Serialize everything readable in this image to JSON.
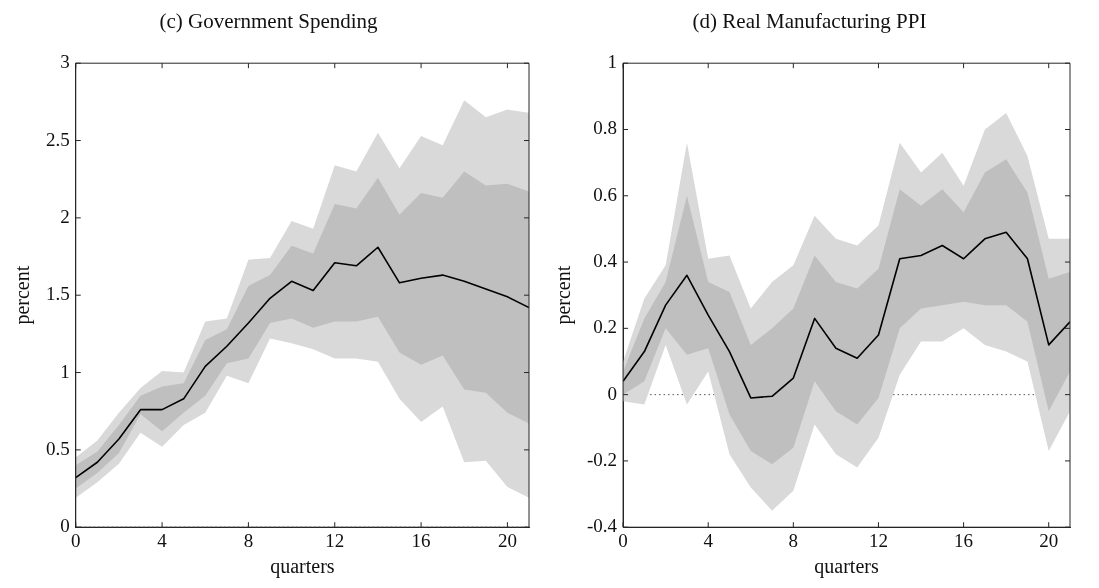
{
  "chart_data": [
    {
      "type": "line",
      "title": "(c) Government Spending",
      "xlabel": "quarters",
      "ylabel": "percent",
      "x": [
        0,
        1,
        2,
        3,
        4,
        5,
        6,
        7,
        8,
        9,
        10,
        11,
        12,
        13,
        14,
        15,
        16,
        17,
        18,
        19,
        20,
        21
      ],
      "xlim": [
        0,
        21
      ],
      "xticks": [
        0,
        4,
        8,
        12,
        16,
        20
      ],
      "ylim": [
        0,
        3
      ],
      "yticks": [
        0,
        0.5,
        1,
        1.5,
        2,
        2.5,
        3
      ],
      "grid": false,
      "legend": false,
      "marker": "none",
      "series": [
        {
          "color": "#d9d9d9",
          "values": [
            null,
            null,
            null,
            null,
            null,
            null,
            null,
            null,
            null,
            null,
            null,
            null,
            null,
            null,
            null,
            null,
            null,
            null,
            null,
            null,
            null,
            null
          ],
          "lower": [
            0.19,
            0.29,
            0.41,
            0.61,
            0.52,
            0.66,
            0.74,
            0.98,
            0.93,
            1.22,
            1.19,
            1.15,
            1.09,
            1.09,
            1.07,
            0.83,
            0.68,
            0.78,
            0.42,
            0.43,
            0.26,
            0.19
          ],
          "upper": [
            0.45,
            0.56,
            0.74,
            0.9,
            1.01,
            1.0,
            1.33,
            1.35,
            1.73,
            1.74,
            1.98,
            1.93,
            2.34,
            2.3,
            2.55,
            2.32,
            2.53,
            2.47,
            2.76,
            2.65,
            2.7,
            2.68
          ]
        },
        {
          "color": "#bfbfbf",
          "values": [
            null,
            null,
            null,
            null,
            null,
            null,
            null,
            null,
            null,
            null,
            null,
            null,
            null,
            null,
            null,
            null,
            null,
            null,
            null,
            null,
            null,
            null
          ],
          "lower": [
            0.25,
            0.35,
            0.48,
            0.73,
            0.62,
            0.74,
            0.85,
            1.06,
            1.09,
            1.32,
            1.35,
            1.29,
            1.33,
            1.33,
            1.36,
            1.13,
            1.05,
            1.11,
            0.89,
            0.87,
            0.74,
            0.67
          ],
          "upper": [
            0.4,
            0.49,
            0.66,
            0.85,
            0.91,
            0.93,
            1.21,
            1.28,
            1.56,
            1.63,
            1.82,
            1.77,
            2.09,
            2.06,
            2.26,
            2.02,
            2.16,
            2.13,
            2.3,
            2.21,
            2.22,
            2.17
          ]
        },
        {
          "color": "#000000",
          "line_style": "solid",
          "values": [
            0.32,
            0.42,
            0.57,
            0.76,
            0.76,
            0.83,
            1.04,
            1.17,
            1.32,
            1.48,
            1.59,
            1.53,
            1.71,
            1.69,
            1.81,
            1.58,
            1.61,
            1.63,
            1.59,
            1.54,
            1.49,
            1.42
          ]
        }
      ],
      "ref_lines": [
        {
          "axis": "y",
          "value": 0,
          "color": "#555555",
          "line_style": "dotted"
        }
      ]
    },
    {
      "type": "line",
      "title": "(d) Real Manufacturing PPI",
      "xlabel": "quarters",
      "ylabel": "percent",
      "x": [
        0,
        1,
        2,
        3,
        4,
        5,
        6,
        7,
        8,
        9,
        10,
        11,
        12,
        13,
        14,
        15,
        16,
        17,
        18,
        19,
        20,
        21
      ],
      "xlim": [
        0,
        21
      ],
      "xticks": [
        0,
        4,
        8,
        12,
        16,
        20
      ],
      "ylim": [
        -0.4,
        1
      ],
      "yticks": [
        -0.4,
        -0.2,
        0,
        0.2,
        0.4,
        0.6,
        0.8,
        1
      ],
      "grid": false,
      "legend": false,
      "marker": "none",
      "series": [
        {
          "color": "#d9d9d9",
          "values": [
            null,
            null,
            null,
            null,
            null,
            null,
            null,
            null,
            null,
            null,
            null,
            null,
            null,
            null,
            null,
            null,
            null,
            null,
            null,
            null,
            null,
            null
          ],
          "lower": [
            -0.02,
            -0.03,
            0.15,
            -0.03,
            0.07,
            -0.18,
            -0.28,
            -0.35,
            -0.29,
            -0.09,
            -0.18,
            -0.22,
            -0.13,
            0.06,
            0.16,
            0.16,
            0.2,
            0.15,
            0.13,
            0.1,
            -0.17,
            -0.05
          ],
          "upper": [
            0.1,
            0.29,
            0.39,
            0.76,
            0.41,
            0.42,
            0.26,
            0.34,
            0.39,
            0.54,
            0.47,
            0.45,
            0.51,
            0.76,
            0.67,
            0.73,
            0.63,
            0.8,
            0.85,
            0.72,
            0.47,
            0.47
          ]
        },
        {
          "color": "#bfbfbf",
          "values": [
            null,
            null,
            null,
            null,
            null,
            null,
            null,
            null,
            null,
            null,
            null,
            null,
            null,
            null,
            null,
            null,
            null,
            null,
            null,
            null,
            null,
            null
          ],
          "lower": [
            0.0,
            0.04,
            0.2,
            0.12,
            0.14,
            -0.06,
            -0.17,
            -0.21,
            -0.16,
            0.04,
            -0.05,
            -0.09,
            -0.01,
            0.2,
            0.26,
            0.27,
            0.28,
            0.27,
            0.27,
            0.22,
            -0.05,
            0.07
          ],
          "upper": [
            0.07,
            0.23,
            0.34,
            0.6,
            0.34,
            0.31,
            0.15,
            0.2,
            0.26,
            0.42,
            0.34,
            0.32,
            0.38,
            0.62,
            0.57,
            0.62,
            0.55,
            0.67,
            0.71,
            0.61,
            0.35,
            0.37
          ]
        },
        {
          "color": "#000000",
          "line_style": "solid",
          "values": [
            0.04,
            0.13,
            0.27,
            0.36,
            0.24,
            0.13,
            -0.01,
            -0.005,
            0.05,
            0.23,
            0.14,
            0.11,
            0.18,
            0.41,
            0.42,
            0.45,
            0.41,
            0.47,
            0.49,
            0.41,
            0.15,
            0.22
          ]
        }
      ],
      "ref_lines": [
        {
          "axis": "y",
          "value": 0,
          "color": "#555555",
          "line_style": "dotted"
        }
      ]
    }
  ]
}
